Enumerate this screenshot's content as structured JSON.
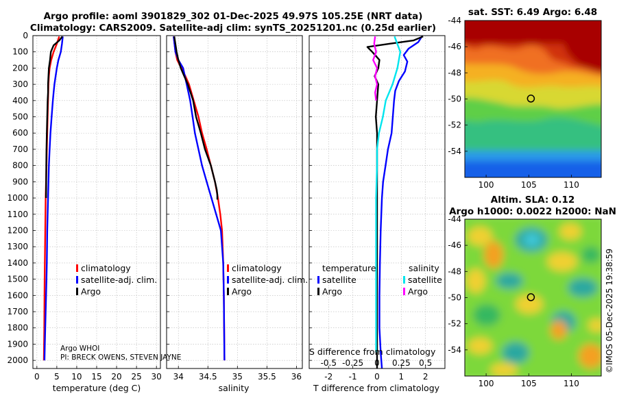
{
  "header": {
    "line1": "Argo profile: aoml 3901829_302 01-Dec-2025 49.97S 105.25E (NRT data)",
    "line2": "Climatology: CARS2009. Satellite-adj clim: synTS_20251201.nc (0.25d earlier)"
  },
  "footer_note": {
    "line1": "Argo WHOI",
    "line2": "PI: BRECK OWENS, STEVEN JAYNE"
  },
  "timestamp": "©IMOS 05-Dec-2025 19:38:59",
  "colors": {
    "climatology": "#ff0000",
    "satellite": "#0000ff",
    "argo": "#000000",
    "sat_salinity": "#00e5ee",
    "argo_salinity": "#ff00ff"
  },
  "chart_data": [
    {
      "id": "temperature",
      "type": "line",
      "xlabel": "temperature (deg C)",
      "ylabel": "",
      "xlim": [
        -1,
        31
      ],
      "ylim": [
        2050,
        0
      ],
      "xticks": [
        0,
        5,
        10,
        15,
        20,
        25,
        30
      ],
      "xtick_labels": [
        "0",
        "5",
        "10",
        "15",
        "20",
        "25",
        "30"
      ],
      "yticks": [
        0,
        100,
        200,
        300,
        400,
        500,
        600,
        700,
        800,
        900,
        1000,
        1100,
        1200,
        1300,
        1400,
        1500,
        1600,
        1700,
        1800,
        1900,
        2000
      ],
      "ytick_labels": [
        "0",
        "100",
        "200",
        "300",
        "400",
        "500",
        "600",
        "700",
        "800",
        "900",
        "1000",
        "1100",
        "1200",
        "1300",
        "1400",
        "1500",
        "1600",
        "1700",
        "1800",
        "1900",
        "2000"
      ],
      "grid": true,
      "legend": {
        "position": "right-middle",
        "entries": [
          "climatology",
          "satellite-adj. clim.",
          "Argo"
        ]
      },
      "series": [
        {
          "name": "climatology",
          "color": "#ff0000",
          "x": [
            5.6,
            5.0,
            4.2,
            3.6,
            3.2,
            3.0,
            2.9,
            2.85,
            2.8,
            2.7,
            2.6,
            2.5,
            2.4,
            2.3,
            2.2,
            2.1,
            2.0,
            1.95,
            1.9,
            1.85,
            1.8,
            1.75
          ],
          "y": [
            5,
            50,
            100,
            150,
            200,
            250,
            300,
            350,
            400,
            500,
            600,
            700,
            800,
            900,
            1000,
            1200,
            1400,
            1500,
            1600,
            1800,
            1900,
            2000
          ]
        },
        {
          "name": "satellite-adj. clim.",
          "color": "#0000ff",
          "x": [
            6.5,
            6.3,
            6.0,
            5.4,
            5.0,
            4.7,
            4.4,
            4.2,
            4.0,
            3.7,
            3.4,
            3.2,
            3.0,
            2.9,
            2.8,
            2.6,
            2.5,
            2.4,
            2.3,
            2.1,
            2.0,
            1.9
          ],
          "y": [
            5,
            50,
            100,
            150,
            200,
            250,
            300,
            350,
            400,
            500,
            600,
            700,
            800,
            900,
            1000,
            1200,
            1400,
            1500,
            1600,
            1800,
            1900,
            2000
          ]
        },
        {
          "name": "Argo",
          "color": "#000000",
          "x": [
            6.4,
            5.6,
            4.2,
            3.5,
            3.3,
            3.0,
            2.9,
            2.8,
            2.8,
            2.7,
            2.6,
            2.5,
            2.4,
            2.35,
            2.3
          ],
          "y": [
            5,
            30,
            60,
            100,
            150,
            200,
            250,
            300,
            350,
            400,
            500,
            600,
            700,
            800,
            1000
          ]
        }
      ]
    },
    {
      "id": "salinity",
      "type": "line",
      "xlabel": "salinity",
      "ylabel": "",
      "xlim": [
        33.8,
        36.1
      ],
      "ylim": [
        2050,
        0
      ],
      "xticks": [
        34,
        34.5,
        35,
        35.5,
        36
      ],
      "xtick_labels": [
        "34",
        "34.5",
        "35",
        "35.5",
        "36"
      ],
      "grid": true,
      "legend": {
        "position": "right-middle",
        "entries": [
          "climatology",
          "satellite-adj. clim.",
          "Argo"
        ]
      },
      "series": [
        {
          "name": "climatology",
          "color": "#ff0000",
          "x": [
            33.92,
            33.95,
            33.98,
            34.05,
            34.12,
            34.18,
            34.26,
            34.34,
            34.4,
            34.48,
            34.55,
            34.62,
            34.67,
            34.71,
            34.74,
            34.76,
            34.77,
            34.78
          ],
          "y": [
            5,
            100,
            150,
            200,
            250,
            300,
            400,
            500,
            600,
            700,
            800,
            900,
            1000,
            1100,
            1200,
            1400,
            1600,
            2000
          ]
        },
        {
          "name": "satellite-adj. clim.",
          "color": "#0000ff",
          "x": [
            33.92,
            33.95,
            34.0,
            34.08,
            34.14,
            34.2,
            34.24,
            34.28,
            34.34,
            34.4,
            34.48,
            34.56,
            34.64,
            34.72,
            34.76,
            34.77,
            34.78
          ],
          "y": [
            5,
            100,
            150,
            200,
            300,
            400,
            500,
            600,
            700,
            800,
            900,
            1000,
            1100,
            1200,
            1400,
            1600,
            2000
          ]
        },
        {
          "name": "Argo",
          "color": "#000000",
          "x": [
            33.93,
            33.97,
            34.0,
            34.04,
            34.1,
            34.16,
            34.25,
            34.3,
            34.38,
            34.45,
            34.55,
            34.62,
            34.65,
            34.66,
            34.66
          ],
          "y": [
            5,
            100,
            150,
            200,
            250,
            300,
            400,
            500,
            600,
            700,
            800,
            900,
            950,
            980,
            1010
          ]
        }
      ]
    },
    {
      "id": "difference",
      "type": "line",
      "xlabel": "T difference from climatology",
      "top_label": "S difference from climatology",
      "xlim": [
        -2.8,
        2.8
      ],
      "ylim": [
        2050,
        0
      ],
      "xticks": [
        -2,
        -1,
        0,
        1,
        2
      ],
      "xtick_labels": [
        "-2",
        "-1",
        "0",
        "1",
        "2"
      ],
      "top_ticks": [
        -0.5,
        -0.25,
        0,
        0.25,
        0.5
      ],
      "top_tick_labels": [
        "-0.5",
        "-0.25",
        "0",
        "0.25",
        "0.5"
      ],
      "grid": true,
      "legend": {
        "position": "right-middle",
        "left_header": "temperature",
        "right_header": "salinity",
        "left_entries": [
          "satellite",
          "Argo"
        ],
        "right_entries": [
          "satellite",
          "Argo"
        ]
      },
      "series": [
        {
          "name": "T satellite",
          "color": "#0000ff",
          "x": [
            1.85,
            1.7,
            1.3,
            1.1,
            1.25,
            1.15,
            0.9,
            0.75,
            0.7,
            0.65,
            0.6,
            0.45,
            0.35,
            0.25,
            0.2,
            0.15,
            0.12,
            0.1,
            0.1,
            0.15,
            0.2
          ],
          "y": [
            5,
            40,
            80,
            120,
            160,
            220,
            280,
            340,
            400,
            500,
            600,
            700,
            800,
            900,
            1000,
            1200,
            1400,
            1600,
            1800,
            1950,
            2050
          ]
        },
        {
          "name": "T Argo",
          "color": "#000000",
          "x": [
            1.9,
            1.5,
            0.5,
            -0.4,
            -0.2,
            0.1,
            0.05,
            -0.1,
            0.05,
            0.0,
            -0.05,
            0.0,
            0.0,
            0.0,
            0.0,
            0.0,
            0.0,
            0.0,
            0.0,
            0.0
          ],
          "y": [
            5,
            30,
            50,
            70,
            100,
            150,
            200,
            250,
            300,
            400,
            500,
            600,
            800,
            1000,
            1200,
            1400,
            1600,
            1800,
            1950,
            2050
          ]
        },
        {
          "name": "S satellite",
          "color": "#00e5ee",
          "x": [
            0.18,
            0.24,
            0.21,
            0.16,
            0.09,
            0.06,
            0.02,
            0.0,
            0.0,
            -0.01,
            -0.01,
            -0.01,
            -0.01,
            -0.01,
            -0.01
          ],
          "y": [
            5,
            100,
            200,
            300,
            400,
            500,
            600,
            700,
            800,
            1000,
            1200,
            1400,
            1600,
            1800,
            1950
          ]
        },
        {
          "name": "S Argo",
          "color": "#ff00ff",
          "x": [
            -0.02,
            -0.03,
            -0.01,
            -0.04,
            0.0,
            -0.02,
            0.0,
            -0.02,
            -0.01
          ],
          "y": [
            5,
            50,
            100,
            150,
            200,
            250,
            300,
            350,
            400
          ]
        }
      ]
    },
    {
      "id": "sst_map",
      "type": "heatmap",
      "title": "sat. SST: 6.49 Argo: 6.48",
      "xlim": [
        97.5,
        113.5
      ],
      "ylim": [
        -56,
        -44
      ],
      "xticks": [
        100,
        105,
        110
      ],
      "xtick_labels": [
        "100",
        "105",
        "110"
      ],
      "yticks": [
        -44,
        -46,
        -48,
        -50,
        -52,
        -54
      ],
      "ytick_labels": [
        "-44",
        "-46",
        "-48",
        "-50",
        "-52",
        "-54"
      ],
      "marker": {
        "lon": 105.25,
        "lat": -49.97
      }
    },
    {
      "id": "sla_map",
      "type": "heatmap",
      "title_line1": "Altim. SLA: 0.12",
      "title_line2": "Argo h1000: 0.0022 h2000: NaN",
      "xlim": [
        97.5,
        113.5
      ],
      "ylim": [
        -56,
        -44
      ],
      "xticks": [
        100,
        105,
        110
      ],
      "xtick_labels": [
        "100",
        "105",
        "110"
      ],
      "yticks": [
        -44,
        -46,
        -48,
        -50,
        -52,
        -54
      ],
      "ytick_labels": [
        "-44",
        "-46",
        "-48",
        "-50",
        "-52",
        "-54"
      ],
      "marker": {
        "lon": 105.25,
        "lat": -49.97
      }
    }
  ]
}
